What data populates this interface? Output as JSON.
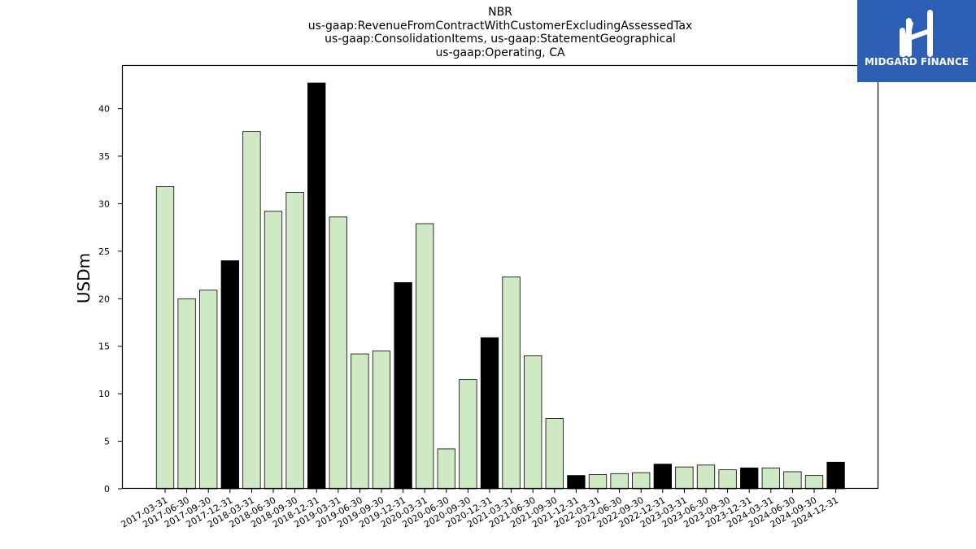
{
  "chart_data": {
    "type": "bar",
    "title_lines": [
      "NBR",
      "us-gaap:RevenueFromContractWithCustomerExcludingAssessedTax",
      "us-gaap:ConsolidationItems, us-gaap:StatementGeographical",
      "us-gaap:Operating, CA"
    ],
    "ylabel": "USDm",
    "xlabel": "",
    "ylim": [
      0,
      44.5
    ],
    "yticks": [
      0,
      5,
      10,
      15,
      20,
      25,
      30,
      35,
      40
    ],
    "grid": false,
    "categories": [
      "2017-03-31",
      "2017-06-30",
      "2017-09-30",
      "2017-12-31",
      "2018-03-31",
      "2018-06-30",
      "2018-09-30",
      "2018-12-31",
      "2019-03-31",
      "2019-06-30",
      "2019-09-30",
      "2019-12-31",
      "2020-03-31",
      "2020-06-30",
      "2020-09-30",
      "2020-12-31",
      "2021-03-31",
      "2021-06-30",
      "2021-09-30",
      "2021-12-31",
      "2022-03-31",
      "2022-06-30",
      "2022-09-30",
      "2022-12-31",
      "2023-03-31",
      "2023-06-30",
      "2023-09-30",
      "2023-12-31",
      "2024-03-31",
      "2024-06-30",
      "2024-09-30",
      "2024-12-31"
    ],
    "values": [
      31.8,
      20.0,
      20.9,
      24.0,
      37.6,
      29.2,
      31.2,
      42.7,
      28.6,
      14.2,
      14.5,
      21.7,
      27.9,
      4.2,
      11.5,
      15.9,
      22.3,
      14.0,
      7.4,
      1.4,
      1.5,
      1.6,
      1.7,
      2.6,
      2.3,
      2.5,
      2.0,
      2.2,
      2.2,
      1.8,
      1.4,
      2.8
    ],
    "highlight_color": "#000000",
    "bar_color": "#cfe9c5",
    "edge_color": "#000000",
    "highlighted": [
      false,
      false,
      false,
      true,
      false,
      false,
      false,
      true,
      false,
      false,
      false,
      true,
      false,
      false,
      false,
      true,
      false,
      false,
      false,
      true,
      false,
      false,
      false,
      true,
      false,
      false,
      false,
      true,
      false,
      false,
      false,
      true
    ]
  },
  "logo": {
    "text": "MIDGARD FINANCE",
    "background": "#2d5fb4"
  }
}
